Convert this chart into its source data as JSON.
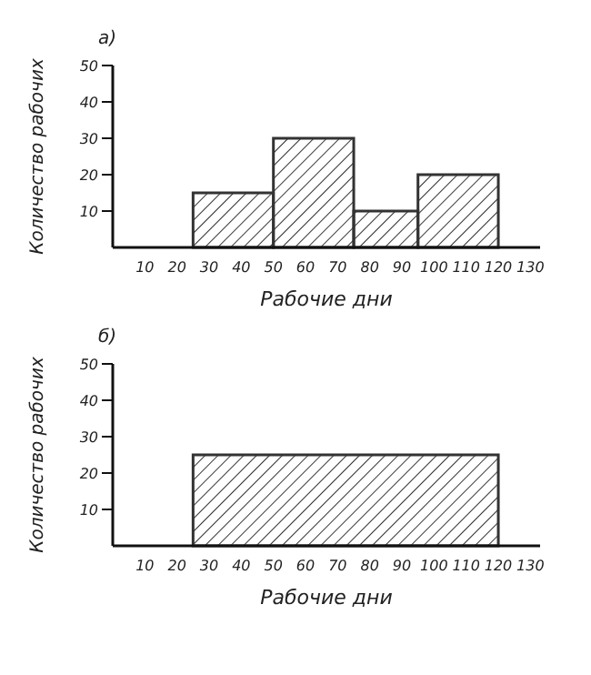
{
  "chart_data": [
    {
      "type": "histogram",
      "title": "а)",
      "xlabel": "Рабочие дни",
      "ylabel": "Количество рабочих",
      "bins": [
        25,
        50,
        75,
        95,
        120
      ],
      "values": [
        15,
        30,
        10,
        20
      ],
      "color": "#333333",
      "xlim": [
        0,
        133
      ],
      "xticks": [
        10,
        20,
        30,
        40,
        50,
        60,
        70,
        80,
        90,
        100,
        110,
        120,
        130
      ],
      "ylim": [
        0,
        50
      ],
      "yticks": [
        10,
        20,
        30,
        40,
        50
      ]
    },
    {
      "type": "histogram",
      "title": "б)",
      "xlabel": "Рабочие дни",
      "ylabel": "Количество рабочих",
      "bins": [
        25,
        120
      ],
      "values": [
        25
      ],
      "color": "#333333",
      "xlim": [
        0,
        133
      ],
      "xticks": [
        10,
        20,
        30,
        40,
        50,
        60,
        70,
        80,
        90,
        100,
        110,
        120,
        130
      ],
      "ylim": [
        0,
        50
      ],
      "yticks": [
        10,
        20,
        30,
        40,
        50
      ]
    }
  ]
}
